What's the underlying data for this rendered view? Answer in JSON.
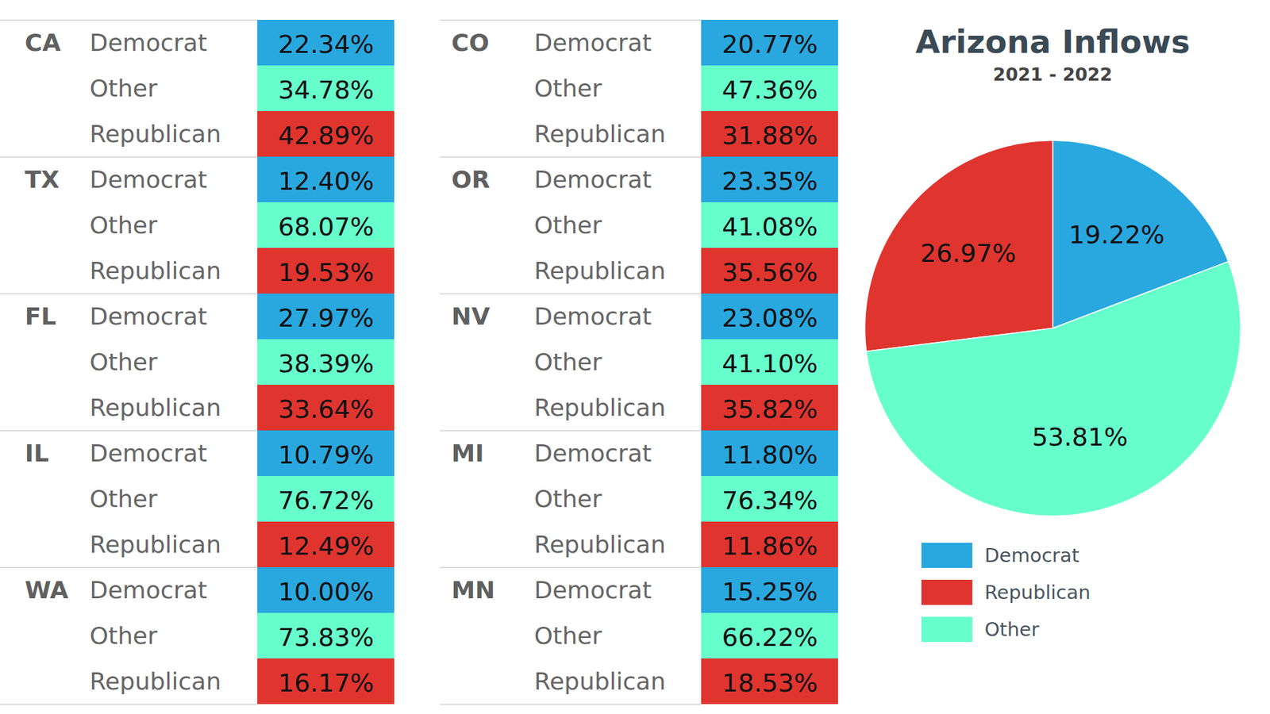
{
  "chart_data": [
    {
      "type": "table",
      "categories": [
        "CA",
        "TX",
        "FL",
        "IL",
        "WA",
        "CO",
        "OR",
        "NV",
        "MI",
        "MN"
      ],
      "series": [
        {
          "name": "Democrat",
          "color": "#29a8e0",
          "values": [
            22.34,
            12.4,
            27.97,
            10.79,
            10.0,
            20.77,
            23.35,
            23.08,
            11.8,
            15.25
          ],
          "value_labels": [
            "22.34%",
            "12.40%",
            "27.97%",
            "10.79%",
            "10.00%",
            "20.77%",
            "23.35%",
            "23.08%",
            "11.80%",
            "15.25%"
          ]
        },
        {
          "name": "Other",
          "color": "#66ffcc",
          "values": [
            34.78,
            68.07,
            38.39,
            76.72,
            73.83,
            47.36,
            41.08,
            41.1,
            76.34,
            66.22
          ],
          "value_labels": [
            "34.78%",
            "68.07%",
            "38.39%",
            "76.72%",
            "73.83%",
            "47.36%",
            "41.08%",
            "41.10%",
            "76.34%",
            "66.22%"
          ]
        },
        {
          "name": "Republican",
          "color": "#e0352f",
          "values": [
            42.89,
            19.53,
            33.64,
            12.49,
            16.17,
            31.88,
            35.56,
            35.82,
            11.86,
            18.53
          ],
          "value_labels": [
            "42.89%",
            "19.53%",
            "33.64%",
            "12.49%",
            "16.17%",
            "31.88%",
            "35.56%",
            "35.82%",
            "11.86%",
            "18.53%"
          ]
        }
      ],
      "data_labels": true
    },
    {
      "type": "pie",
      "title": "Arizona Inflows",
      "subtitle": "2021 - 2022",
      "categories": [
        "Democrat",
        "Republican",
        "Other"
      ],
      "values": [
        19.22,
        26.97,
        53.81
      ],
      "value_labels": [
        "19.22%",
        "26.97%",
        "53.81%"
      ],
      "colors": [
        "#29a8e0",
        "#e0352f",
        "#66ffcc"
      ],
      "legend": "bottom",
      "data_labels": true
    }
  ]
}
